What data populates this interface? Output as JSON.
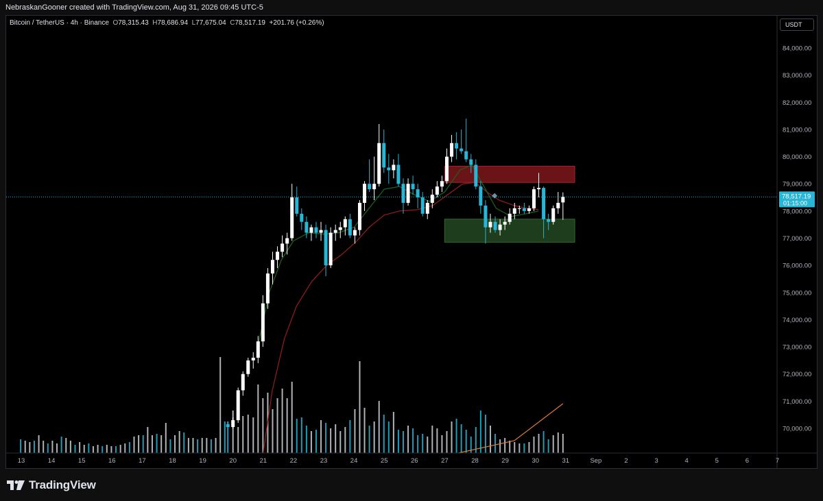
{
  "header": {
    "attribution": "NebraskanGooner created with TradingView.com, Aug 31, 2026 09:45 UTC-5"
  },
  "legend": {
    "symbol": "Bitcoin / TetherUS · 4h · Binance",
    "open_key": "O",
    "open": "78,315.43",
    "high_key": "H",
    "high": "78,686.94",
    "low_key": "L",
    "low": "77,675.04",
    "close_key": "C",
    "close": "78,517.19",
    "change": "+201.76 (+0.26%)"
  },
  "currency_button": "USDT",
  "price_label": {
    "price": "78,517.19",
    "countdown": "01:15:00"
  },
  "logo_text": "TradingView",
  "colors": {
    "up": "#ffffff",
    "down": "#29b6d6",
    "ema_fast": "#1b5e20",
    "ema_slow": "#8e1c1c",
    "volume_ma": "#e07a3a",
    "resistance_zone": "#6b1418",
    "support_zone": "#1e3d1c",
    "price_line": "#29b6d6",
    "axis_text": "#b2b5be"
  },
  "chart_data": {
    "type": "candlestick",
    "timeframe": "4h",
    "y_axis": {
      "ticks": [
        "84,000.00",
        "83,000.00",
        "82,000.00",
        "81,000.00",
        "80,000.00",
        "79,000.00",
        "78,000.00",
        "77,000.00",
        "76,000.00",
        "75,000.00",
        "74,000.00",
        "73,000.00",
        "72,000.00",
        "71,000.00",
        "70,000.00"
      ],
      "range": [
        69100,
        84900
      ],
      "side": "right"
    },
    "x_axis": {
      "ticks": [
        "13",
        "14",
        "15",
        "16",
        "17",
        "18",
        "19",
        "20",
        "21",
        "22",
        "23",
        "24",
        "25",
        "26",
        "27",
        "28",
        "29",
        "30",
        "31",
        "Sep",
        "2",
        "3",
        "4",
        "5",
        "6",
        "7"
      ]
    },
    "candles": [
      [
        19.83,
        70150,
        70250,
        70050,
        70050
      ],
      [
        20.0,
        70050,
        70400,
        70000,
        70300
      ],
      [
        20.17,
        70300,
        71500,
        70200,
        71400
      ],
      [
        20.33,
        71400,
        72100,
        71200,
        72000
      ],
      [
        20.5,
        72000,
        72600,
        71900,
        72500
      ],
      [
        20.67,
        72500,
        72800,
        72200,
        72600
      ],
      [
        20.83,
        72600,
        73400,
        72400,
        73200
      ],
      [
        20.99,
        73200,
        74900,
        73000,
        74600
      ],
      [
        21.15,
        74600,
        75900,
        74400,
        75700
      ],
      [
        21.31,
        75700,
        76500,
        75300,
        76200
      ],
      [
        21.47,
        76200,
        76700,
        75900,
        76500
      ],
      [
        21.63,
        76500,
        77100,
        76300,
        76800
      ],
      [
        21.79,
        76800,
        77200,
        76400,
        77000
      ],
      [
        21.95,
        77000,
        79000,
        76900,
        78500
      ],
      [
        22.11,
        78500,
        78900,
        77800,
        77900
      ],
      [
        22.27,
        77900,
        78100,
        77300,
        77600
      ],
      [
        22.43,
        77600,
        77800,
        77000,
        77200
      ],
      [
        22.59,
        77200,
        77500,
        76900,
        77400
      ],
      [
        22.75,
        77400,
        77600,
        77000,
        77200
      ],
      [
        22.91,
        77200,
        77600,
        76900,
        77300
      ],
      [
        23.07,
        77300,
        77500,
        75600,
        76000
      ],
      [
        23.23,
        76000,
        77400,
        75900,
        77200
      ],
      [
        23.39,
        77200,
        77500,
        76900,
        77300
      ],
      [
        23.55,
        77300,
        77600,
        77000,
        77400
      ],
      [
        23.71,
        77400,
        77800,
        77100,
        77700
      ],
      [
        23.87,
        77700,
        77900,
        77000,
        77100
      ],
      [
        24.03,
        77100,
        77400,
        76800,
        77300
      ],
      [
        24.19,
        77300,
        78400,
        77100,
        78300
      ],
      [
        24.35,
        78300,
        79100,
        78000,
        79000
      ],
      [
        24.51,
        79000,
        79900,
        78700,
        78800
      ],
      [
        24.67,
        78800,
        80000,
        78400,
        79000
      ],
      [
        24.83,
        79000,
        81200,
        78900,
        80500
      ],
      [
        24.99,
        80500,
        81000,
        79400,
        79600
      ],
      [
        25.15,
        79600,
        80100,
        79000,
        79500
      ],
      [
        25.31,
        79500,
        79900,
        79200,
        79700
      ],
      [
        25.47,
        79700,
        80100,
        78900,
        79000
      ],
      [
        25.63,
        79000,
        79200,
        77900,
        78300
      ],
      [
        25.79,
        78300,
        79200,
        78200,
        79000
      ],
      [
        25.95,
        79000,
        79300,
        78600,
        78800
      ],
      [
        26.11,
        78800,
        79000,
        78100,
        78500
      ],
      [
        26.27,
        78500,
        78700,
        77800,
        77900
      ],
      [
        26.43,
        77900,
        78400,
        77700,
        78300
      ],
      [
        26.59,
        78300,
        78800,
        78100,
        78600
      ],
      [
        26.75,
        78600,
        79100,
        78500,
        78900
      ],
      [
        26.91,
        78900,
        79300,
        78700,
        79100
      ],
      [
        27.07,
        79100,
        80300,
        79000,
        80000
      ],
      [
        27.23,
        80000,
        80800,
        79800,
        80500
      ],
      [
        27.39,
        80500,
        80900,
        79900,
        80300
      ],
      [
        27.55,
        80300,
        81000,
        80100,
        80200
      ],
      [
        27.71,
        80200,
        81400,
        79800,
        79900
      ],
      [
        27.87,
        79900,
        80100,
        79400,
        79700
      ],
      [
        28.03,
        79700,
        79900,
        78800,
        78900
      ],
      [
        28.19,
        78900,
        79100,
        77900,
        78200
      ],
      [
        28.35,
        78200,
        78400,
        76800,
        77400
      ],
      [
        28.51,
        77400,
        77900,
        77200,
        77600
      ],
      [
        28.67,
        77600,
        77800,
        77200,
        77300
      ],
      [
        28.83,
        77300,
        77700,
        77100,
        77500
      ],
      [
        28.99,
        77500,
        77800,
        77300,
        77600
      ],
      [
        29.15,
        77600,
        78100,
        77500,
        77900
      ],
      [
        29.31,
        77900,
        78300,
        77700,
        78100
      ],
      [
        29.47,
        78100,
        78200,
        77900,
        78100
      ],
      [
        29.63,
        78100,
        78300,
        77900,
        78000
      ],
      [
        29.79,
        78000,
        78200,
        77900,
        78100
      ],
      [
        29.95,
        78100,
        78900,
        78000,
        78800
      ],
      [
        30.11,
        78800,
        79400,
        78500,
        78850
      ],
      [
        30.27,
        78850,
        78900,
        77000,
        77700
      ],
      [
        30.43,
        77700,
        77900,
        77300,
        77600
      ],
      [
        30.59,
        77600,
        78200,
        77500,
        78100
      ],
      [
        30.75,
        78100,
        78700,
        77900,
        78300
      ],
      [
        30.91,
        78315,
        78687,
        77675,
        78517
      ]
    ],
    "volume_max_note": "",
    "volumes": [
      [
        12.98,
        0.1
      ],
      [
        13.13,
        0.09
      ],
      [
        13.28,
        0.08
      ],
      [
        13.43,
        0.09
      ],
      [
        13.58,
        0.13
      ],
      [
        13.73,
        0.09
      ],
      [
        13.88,
        0.07
      ],
      [
        14.03,
        0.09
      ],
      [
        14.18,
        0.07
      ],
      [
        14.33,
        0.12
      ],
      [
        14.48,
        0.11
      ],
      [
        14.63,
        0.09
      ],
      [
        14.78,
        0.06
      ],
      [
        14.93,
        0.08
      ],
      [
        15.08,
        0.06
      ],
      [
        15.23,
        0.07
      ],
      [
        15.38,
        0.05
      ],
      [
        15.53,
        0.06
      ],
      [
        15.68,
        0.05
      ],
      [
        15.83,
        0.06
      ],
      [
        15.98,
        0.05
      ],
      [
        16.13,
        0.05
      ],
      [
        16.28,
        0.06
      ],
      [
        16.43,
        0.07
      ],
      [
        16.58,
        0.08
      ],
      [
        16.73,
        0.12
      ],
      [
        16.88,
        0.13
      ],
      [
        17.03,
        0.13
      ],
      [
        17.18,
        0.19
      ],
      [
        17.33,
        0.13
      ],
      [
        17.48,
        0.14
      ],
      [
        17.63,
        0.13
      ],
      [
        17.78,
        0.22
      ],
      [
        17.93,
        0.1
      ],
      [
        18.08,
        0.13
      ],
      [
        18.23,
        0.16
      ],
      [
        18.38,
        0.15
      ],
      [
        18.53,
        0.11
      ],
      [
        18.68,
        0.11
      ],
      [
        18.83,
        0.1
      ],
      [
        18.98,
        0.11
      ],
      [
        19.13,
        0.11
      ],
      [
        19.28,
        0.1
      ],
      [
        19.43,
        0.11
      ],
      [
        19.58,
        0.7
      ],
      [
        19.73,
        0.23
      ],
      [
        19.83,
        0.23
      ],
      [
        20.0,
        0.31
      ],
      [
        20.17,
        0.19
      ],
      [
        20.33,
        0.27
      ],
      [
        20.5,
        0.28
      ],
      [
        20.67,
        0.26
      ],
      [
        20.83,
        0.5
      ],
      [
        20.99,
        0.4
      ],
      [
        21.15,
        0.44
      ],
      [
        21.31,
        0.32
      ],
      [
        21.47,
        0.4
      ],
      [
        21.63,
        0.47
      ],
      [
        21.79,
        0.4
      ],
      [
        21.95,
        0.52
      ],
      [
        22.11,
        0.25
      ],
      [
        22.27,
        0.26
      ],
      [
        22.43,
        0.2
      ],
      [
        22.59,
        0.16
      ],
      [
        22.75,
        0.17
      ],
      [
        22.91,
        0.24
      ],
      [
        23.07,
        0.22
      ],
      [
        23.23,
        0.18
      ],
      [
        23.39,
        0.21
      ],
      [
        23.55,
        0.16
      ],
      [
        23.71,
        0.19
      ],
      [
        23.87,
        0.24
      ],
      [
        24.03,
        0.32
      ],
      [
        24.19,
        0.67
      ],
      [
        24.35,
        0.33
      ],
      [
        24.51,
        0.2
      ],
      [
        24.67,
        0.23
      ],
      [
        24.83,
        0.38
      ],
      [
        24.99,
        0.28
      ],
      [
        25.15,
        0.23
      ],
      [
        25.31,
        0.3
      ],
      [
        25.47,
        0.17
      ],
      [
        25.63,
        0.16
      ],
      [
        25.79,
        0.2
      ],
      [
        25.95,
        0.18
      ],
      [
        26.11,
        0.13
      ],
      [
        26.27,
        0.14
      ],
      [
        26.43,
        0.12
      ],
      [
        26.59,
        0.2
      ],
      [
        26.75,
        0.18
      ],
      [
        26.91,
        0.13
      ],
      [
        27.07,
        0.16
      ],
      [
        27.23,
        0.23
      ],
      [
        27.39,
        0.25
      ],
      [
        27.55,
        0.21
      ],
      [
        27.71,
        0.17
      ],
      [
        27.87,
        0.12
      ],
      [
        28.03,
        0.19
      ],
      [
        28.19,
        0.31
      ],
      [
        28.35,
        0.28
      ],
      [
        28.51,
        0.2
      ],
      [
        28.67,
        0.14
      ],
      [
        28.83,
        0.1
      ],
      [
        28.99,
        0.11
      ],
      [
        29.15,
        0.09
      ],
      [
        29.31,
        0.08
      ],
      [
        29.47,
        0.07
      ],
      [
        29.63,
        0.07
      ],
      [
        29.79,
        0.08
      ],
      [
        29.95,
        0.12
      ],
      [
        30.11,
        0.14
      ],
      [
        30.27,
        0.16
      ],
      [
        30.43,
        0.1
      ],
      [
        30.59,
        0.13
      ],
      [
        30.75,
        0.15
      ],
      [
        30.91,
        0.14
      ]
    ],
    "volume_ma_line": [
      [
        27.45,
        0.0
      ],
      [
        29.3,
        0.09
      ],
      [
        30.91,
        0.36
      ]
    ],
    "ema_fast": [
      [
        20.8,
        72900
      ],
      [
        21.2,
        75000
      ],
      [
        21.6,
        76200
      ],
      [
        22.0,
        76900
      ],
      [
        22.5,
        77200
      ],
      [
        23.0,
        77150
      ],
      [
        23.5,
        77200
      ],
      [
        24.0,
        77400
      ],
      [
        24.5,
        78100
      ],
      [
        25.0,
        78800
      ],
      [
        25.5,
        78900
      ],
      [
        26.0,
        78600
      ],
      [
        26.5,
        78350
      ],
      [
        27.0,
        78700
      ],
      [
        27.5,
        79500
      ],
      [
        27.9,
        79700
      ],
      [
        28.3,
        78900
      ],
      [
        28.7,
        78100
      ],
      [
        29.2,
        77800
      ],
      [
        29.7,
        77900
      ],
      [
        30.1,
        78000
      ]
    ],
    "ema_slow": [
      [
        21.0,
        69100
      ],
      [
        21.3,
        71400
      ],
      [
        21.7,
        73300
      ],
      [
        22.1,
        74500
      ],
      [
        22.6,
        75400
      ],
      [
        23.1,
        76000
      ],
      [
        23.6,
        76400
      ],
      [
        24.1,
        76900
      ],
      [
        24.5,
        77400
      ],
      [
        25.0,
        77850
      ],
      [
        25.5,
        78000
      ],
      [
        26.1,
        78050
      ],
      [
        26.6,
        78200
      ],
      [
        27.1,
        78600
      ],
      [
        27.6,
        79000
      ],
      [
        28.0,
        79050
      ],
      [
        28.4,
        78700
      ],
      [
        28.8,
        78400
      ],
      [
        29.3,
        78200
      ],
      [
        29.7,
        78100
      ],
      [
        30.1,
        78050
      ]
    ],
    "zones": [
      {
        "name": "resistance",
        "x": [
          27.0,
          31.3
        ],
        "y": [
          79050,
          79650
        ]
      },
      {
        "name": "support",
        "x": [
          27.0,
          31.3
        ],
        "y": [
          76850,
          77700
        ]
      }
    ],
    "marker": {
      "x": 28.65,
      "y": 78560
    },
    "current_price": 78517.19,
    "legend_visible": false,
    "grid": false
  }
}
